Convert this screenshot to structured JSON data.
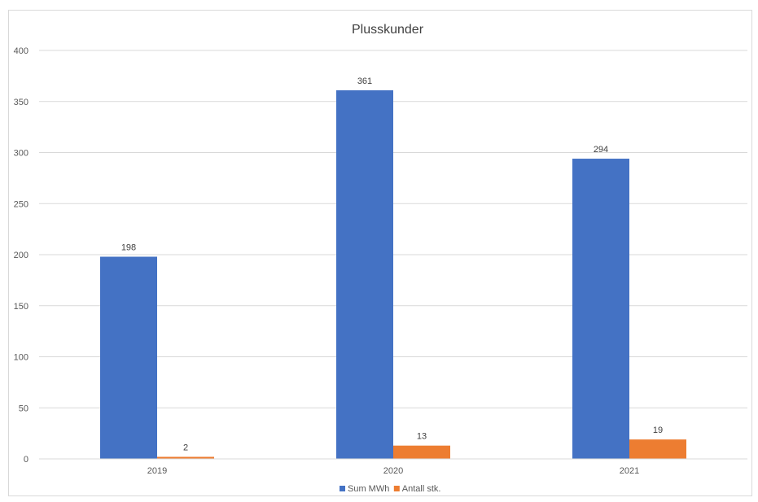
{
  "chart_data": {
    "type": "bar",
    "title": "Plusskunder",
    "categories": [
      "2019",
      "2020",
      "2021"
    ],
    "series": [
      {
        "name": "Sum MWh",
        "values": [
          198,
          361,
          294
        ],
        "color": "#4472C4"
      },
      {
        "name": "Antall stk.",
        "values": [
          2,
          13,
          19
        ],
        "color": "#ED7D31"
      }
    ],
    "ylim": [
      0,
      400
    ],
    "yticks": [
      0,
      50,
      100,
      150,
      200,
      250,
      300,
      350,
      400
    ],
    "grid": true,
    "legend_position": "bottom"
  }
}
